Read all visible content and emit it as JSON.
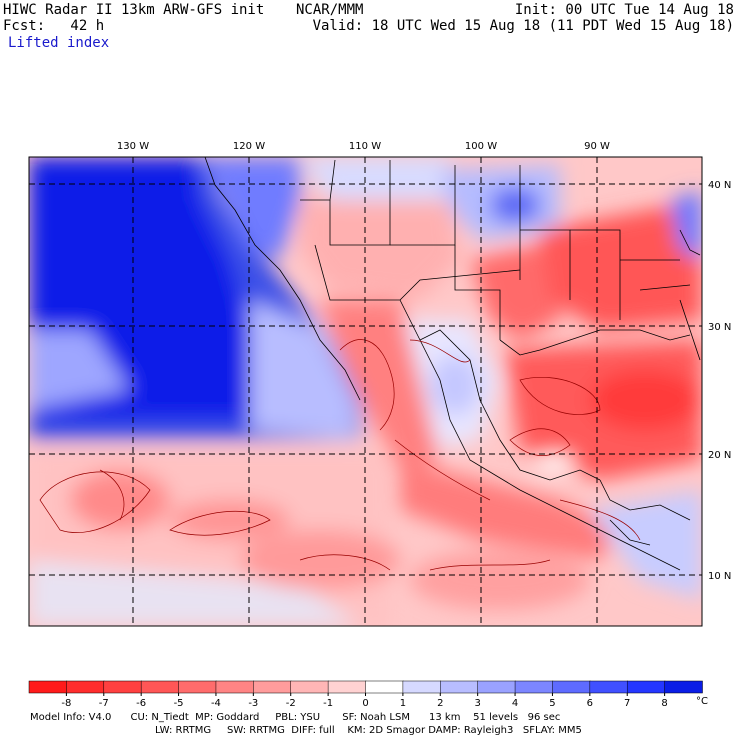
{
  "header": {
    "left_line1": "HIWC Radar II 13km ARW-GFS init",
    "left_line2": "Fcst:   42 h",
    "field_name": "Lifted index",
    "center_line1": "NCAR/MMM",
    "right_line1": "Init: 00 UTC Tue 14 Aug 18",
    "right_line2": "Valid: 18 UTC Wed 15 Aug 18 (11 PDT Wed 15 Aug 18)"
  },
  "map": {
    "lon_labels": [
      "130 W",
      "120 W",
      "110 W",
      "100 W",
      "90 W"
    ],
    "lat_labels": [
      "40 N",
      "30 N",
      "20 N",
      "10 N"
    ]
  },
  "colorbar": {
    "ticks": [
      "-8",
      "-7",
      "-6",
      "-5",
      "-4",
      "-3",
      "-2",
      "-1",
      "0",
      "1",
      "2",
      "3",
      "4",
      "5",
      "6",
      "7",
      "8"
    ],
    "unit": "°C",
    "colors": [
      "#ff1a1a",
      "#ff2d2d",
      "#ff4040",
      "#ff5656",
      "#ff6c6c",
      "#ff8484",
      "#ff9c9c",
      "#ffb6b6",
      "#ffd2d2",
      "#ffffff",
      "#d6d9ff",
      "#b8bdff",
      "#9aa2ff",
      "#7c86ff",
      "#5e6bff",
      "#4050ff",
      "#2436ff",
      "#0a1de6"
    ]
  },
  "footer": {
    "line1": "Model Info: V4.0      CU: N_Tiedt  MP: Goddard     PBL: YSU       SF: Noah LSM      13 km    51 levels   96 sec",
    "line2": "LW: RRTMG     SW: RRTMG  DIFF: full    KM: 2D Smagor DAMP: Rayleigh3   SFLAY: MM5"
  }
}
